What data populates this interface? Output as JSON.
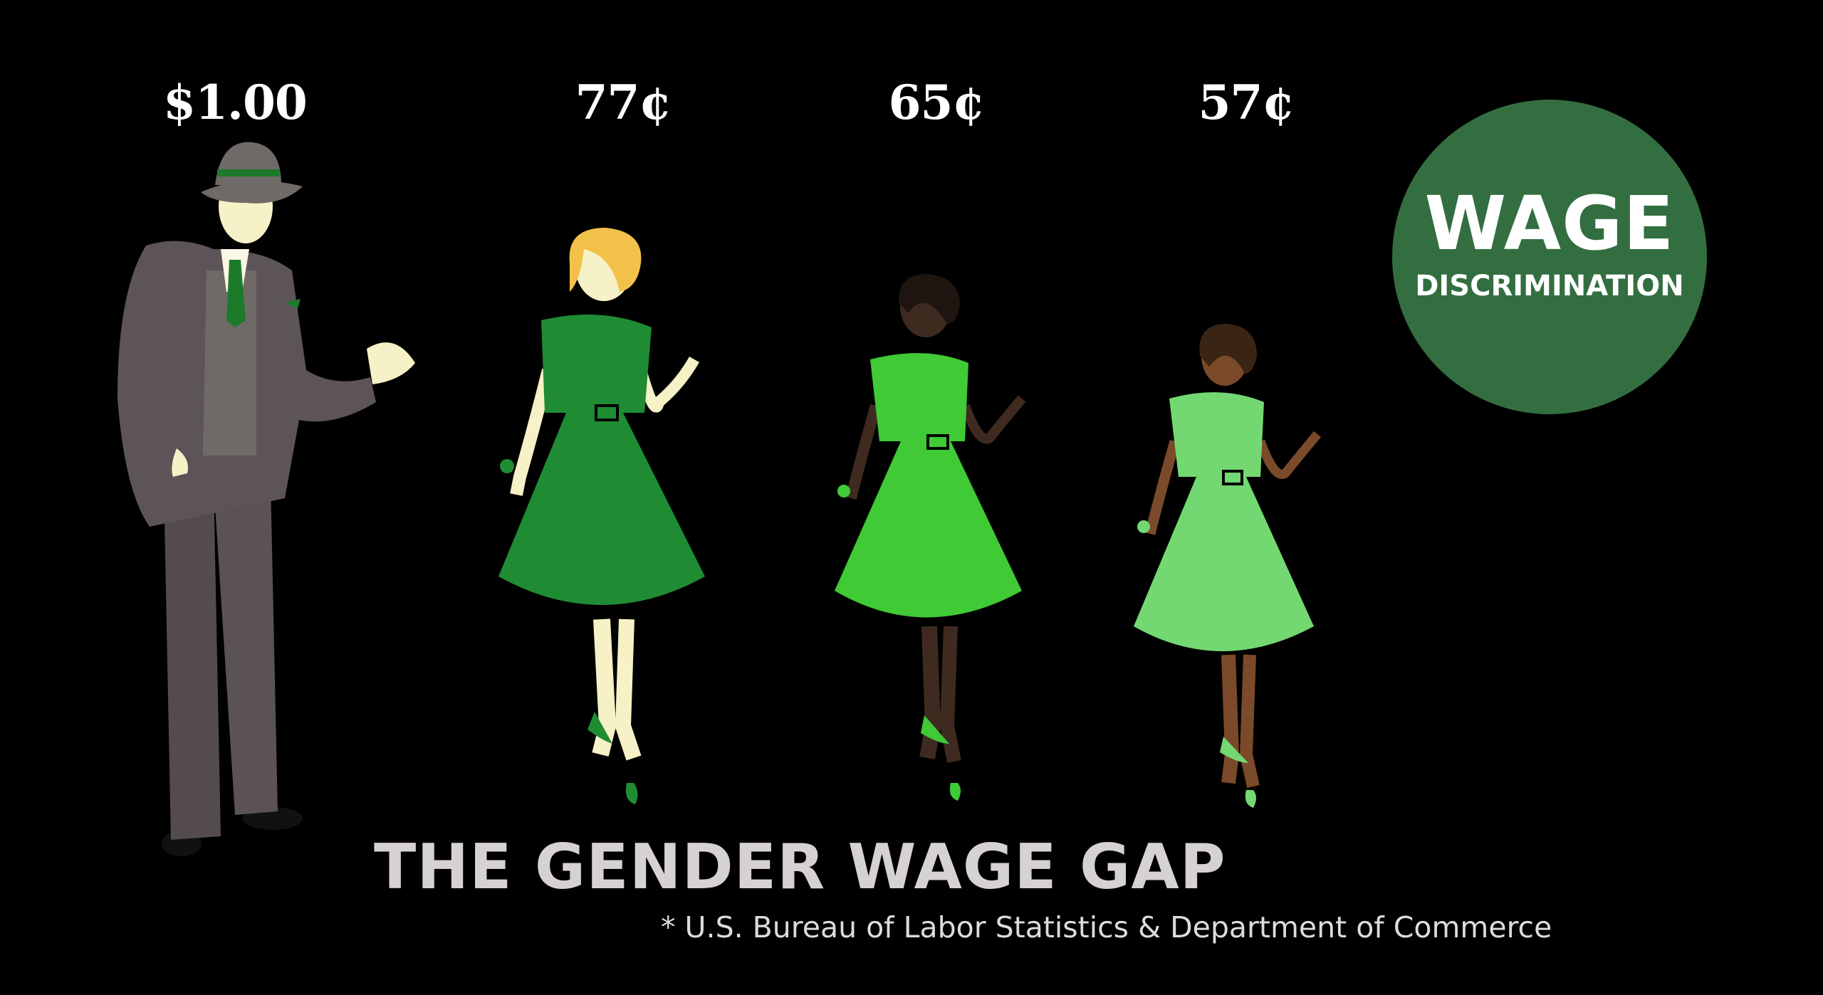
{
  "wages": [
    {
      "label": "$1.00",
      "figure": "man",
      "dress_color": null
    },
    {
      "label": "77¢",
      "figure": "woman",
      "dress_color": "#1f8c33"
    },
    {
      "label": "65¢",
      "figure": "woman",
      "dress_color": "#3fca36"
    },
    {
      "label": "57¢",
      "figure": "woman",
      "dress_color": "#73d872"
    }
  ],
  "badge": {
    "line1": "WAGE",
    "line2": "DISCRIMINATION",
    "color": "#336e41"
  },
  "title": "THE GENDER WAGE GAP",
  "source": "* U.S. Bureau of Labor Statistics & Department of Commerce",
  "colors": {
    "background": "#000000",
    "suit": "#5c5459",
    "skin_light": "#f6f1c6",
    "skin_dark": "#3f2a1f",
    "skin_medium": "#7a4a2a",
    "hair_blonde": "#f2c14a"
  }
}
